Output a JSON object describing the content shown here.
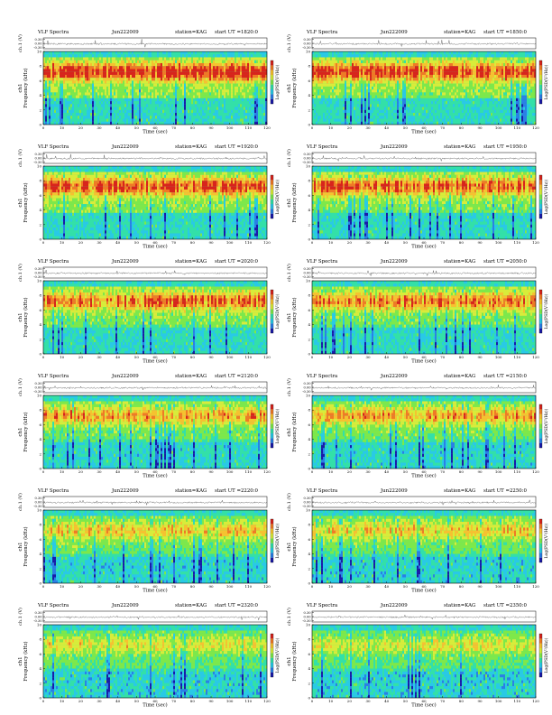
{
  "figure": {
    "title_prefix": "VLF Spectra",
    "date_text": "Jun222009",
    "station_text": "station=KAG",
    "start_prefix": "start  UT  =",
    "colors": {
      "background": "#ffffff",
      "spectrogram_scale": [
        "#1a1aa8",
        "#2a7fe6",
        "#29c9e6",
        "#33e0a8",
        "#7ee84a",
        "#d8ec3a",
        "#f6c230",
        "#ef7a26",
        "#d8241c"
      ],
      "trace": "#333333"
    }
  },
  "chart_data": [
    {
      "type": "heatmap",
      "subtype": "spectrogram",
      "title": "VLF Spectra    Jun222009    station=KAG  start  UT  =1820:0",
      "start_ut": "1820:0",
      "xlabel": "Time  (sec)",
      "ylabel": "Frequency  (kHz)",
      "channel_label": "ch1",
      "xlim": [
        0,
        120
      ],
      "ylim": [
        0,
        10
      ],
      "xticks": [
        0,
        10,
        20,
        30,
        40,
        50,
        60,
        70,
        80,
        90,
        100,
        110,
        120
      ],
      "yticks": [
        0,
        2,
        4,
        6,
        8,
        10
      ],
      "colorbar_label": "Log(PSD(V²/Hz))",
      "trace_label": "ch.1 (V)",
      "trace_ticks": [
        "0.30",
        "0.00",
        "-0.30"
      ],
      "activity": 0.95
    },
    {
      "type": "heatmap",
      "subtype": "spectrogram",
      "title": "VLF Spectra    Jun222009    station=KAG  start  UT  =1850:0",
      "start_ut": "1850:0",
      "xlabel": "Time  (sec)",
      "ylabel": "Frequency  (kHz)",
      "channel_label": "ch1",
      "xlim": [
        0,
        120
      ],
      "ylim": [
        0,
        10
      ],
      "xticks": [
        0,
        10,
        20,
        30,
        40,
        50,
        60,
        70,
        80,
        90,
        100,
        110,
        120
      ],
      "yticks": [
        0,
        2,
        4,
        6,
        8,
        10
      ],
      "colorbar_label": "Log(PSD(V²/Hz))",
      "trace_label": "ch.1 (V)",
      "trace_ticks": [
        "0.30",
        "0.00",
        "-0.30"
      ],
      "activity": 0.9
    },
    {
      "type": "heatmap",
      "subtype": "spectrogram",
      "title": "VLF Spectra    Jun222009    station=KAG  start  UT  =1920:0",
      "start_ut": "1920:0",
      "xlabel": "Time  (sec)",
      "ylabel": "Frequency  (kHz)",
      "channel_label": "ch1",
      "xlim": [
        0,
        120
      ],
      "ylim": [
        0,
        10
      ],
      "xticks": [
        0,
        10,
        20,
        30,
        40,
        50,
        60,
        70,
        80,
        90,
        100,
        110,
        120
      ],
      "yticks": [
        0,
        2,
        4,
        6,
        8,
        10
      ],
      "colorbar_label": "Log(PSD(V²/Hz))",
      "trace_label": "ch.1 (V)",
      "trace_ticks": [
        "0.30",
        "0.00",
        "-0.30"
      ],
      "activity": 0.85
    },
    {
      "type": "heatmap",
      "subtype": "spectrogram",
      "title": "VLF Spectra    Jun222009    station=KAG  start  UT  =1950:0",
      "start_ut": "1950:0",
      "xlabel": "Time  (sec)",
      "ylabel": "Frequency  (kHz)",
      "channel_label": "ch1",
      "xlim": [
        0,
        120
      ],
      "ylim": [
        0,
        10
      ],
      "xticks": [
        0,
        10,
        20,
        30,
        40,
        50,
        60,
        70,
        80,
        90,
        100,
        110,
        120
      ],
      "yticks": [
        0,
        2,
        4,
        6,
        8,
        10
      ],
      "colorbar_label": "Log(PSD(V²/Hz))",
      "trace_label": "ch.1 (V)",
      "trace_ticks": [
        "0.30",
        "0.00",
        "-0.30"
      ],
      "activity": 0.8
    },
    {
      "type": "heatmap",
      "subtype": "spectrogram",
      "title": "VLF Spectra    Jun222009    station=KAG  start  UT  =2020:0",
      "start_ut": "2020:0",
      "xlabel": "Time  (sec)",
      "ylabel": "Frequency  (kHz)",
      "channel_label": "ch1",
      "xlim": [
        0,
        120
      ],
      "ylim": [
        0,
        10
      ],
      "xticks": [
        0,
        10,
        20,
        30,
        40,
        50,
        60,
        70,
        80,
        90,
        100,
        110,
        120
      ],
      "yticks": [
        0,
        2,
        4,
        6,
        8,
        10
      ],
      "colorbar_label": "Log(PSD(V²/Hz))",
      "trace_label": "ch.1 (V)",
      "trace_ticks": [
        "0.30",
        "0.00",
        "-0.30"
      ],
      "activity": 0.75
    },
    {
      "type": "heatmap",
      "subtype": "spectrogram",
      "title": "VLF Spectra    Jun222009    station=KAG  start  UT  =2050:0",
      "start_ut": "2050:0",
      "xlabel": "Time  (sec)",
      "ylabel": "Frequency  (kHz)",
      "channel_label": "ch1",
      "xlim": [
        0,
        120
      ],
      "ylim": [
        0,
        10
      ],
      "xticks": [
        0,
        10,
        20,
        30,
        40,
        50,
        60,
        70,
        80,
        90,
        100,
        110,
        120
      ],
      "yticks": [
        0,
        2,
        4,
        6,
        8,
        10
      ],
      "colorbar_label": "Log(PSD(V²/Hz))",
      "trace_label": "ch.1 (V)",
      "trace_ticks": [
        "0.30",
        "0.00",
        "-0.30"
      ],
      "activity": 0.72
    },
    {
      "type": "heatmap",
      "subtype": "spectrogram",
      "title": "VLF Spectra    Jun222009    station=KAG  start  UT  =2120:0",
      "start_ut": "2120:0",
      "xlabel": "Time  (sec)",
      "ylabel": "Frequency  (kHz)",
      "channel_label": "ch1",
      "xlim": [
        0,
        120
      ],
      "ylim": [
        0,
        10
      ],
      "xticks": [
        0,
        10,
        20,
        30,
        40,
        50,
        60,
        70,
        80,
        90,
        100,
        110,
        120
      ],
      "yticks": [
        0,
        2,
        4,
        6,
        8,
        10
      ],
      "colorbar_label": "Log(PSD(V²/Hz))",
      "trace_label": "ch.1 (V)",
      "trace_ticks": [
        "0.30",
        "0.00",
        "-0.30"
      ],
      "activity": 0.62
    },
    {
      "type": "heatmap",
      "subtype": "spectrogram",
      "title": "VLF Spectra    Jun222009    station=KAG  start  UT  =2150:0",
      "start_ut": "2150:0",
      "xlabel": "Time  (sec)",
      "ylabel": "Frequency  (kHz)",
      "channel_label": "ch1",
      "xlim": [
        0,
        120
      ],
      "ylim": [
        0,
        10
      ],
      "xticks": [
        0,
        10,
        20,
        30,
        40,
        50,
        60,
        70,
        80,
        90,
        100,
        110,
        120
      ],
      "yticks": [
        0,
        2,
        4,
        6,
        8,
        10
      ],
      "colorbar_label": "Log(PSD(V²/Hz))",
      "trace_label": "ch.1 (V)",
      "trace_ticks": [
        "0.30",
        "0.00",
        "-0.30"
      ],
      "activity": 0.6
    },
    {
      "type": "heatmap",
      "subtype": "spectrogram",
      "title": "VLF Spectra    Jun222009    station=KAG  start  UT  =2220:0",
      "start_ut": "2220:0",
      "xlabel": "Time  (sec)",
      "ylabel": "Frequency  (kHz)",
      "channel_label": "ch1",
      "xlim": [
        0,
        120
      ],
      "ylim": [
        0,
        10
      ],
      "xticks": [
        0,
        10,
        20,
        30,
        40,
        50,
        60,
        70,
        80,
        90,
        100,
        110,
        120
      ],
      "yticks": [
        0,
        2,
        4,
        6,
        8,
        10
      ],
      "colorbar_label": "Log(PSD(V²/Hz))",
      "trace_label": "ch.1 (V)",
      "trace_ticks": [
        "0.30",
        "0.00",
        "-0.30"
      ],
      "activity": 0.5
    },
    {
      "type": "heatmap",
      "subtype": "spectrogram",
      "title": "VLF Spectra    Jun222009    station=KAG  start  UT  =2250:0",
      "start_ut": "2250:0",
      "xlabel": "Time  (sec)",
      "ylabel": "Frequency  (kHz)",
      "channel_label": "ch1",
      "xlim": [
        0,
        120
      ],
      "ylim": [
        0,
        10
      ],
      "xticks": [
        0,
        10,
        20,
        30,
        40,
        50,
        60,
        70,
        80,
        90,
        100,
        110,
        120
      ],
      "yticks": [
        0,
        2,
        4,
        6,
        8,
        10
      ],
      "colorbar_label": "Log(PSD(V²/Hz))",
      "trace_label": "ch.1 (V)",
      "trace_ticks": [
        "0.30",
        "0.00",
        "-0.30"
      ],
      "activity": 0.48
    },
    {
      "type": "heatmap",
      "subtype": "spectrogram",
      "title": "VLF Spectra    Jun222009    station=KAG  start  UT  =2320:0",
      "start_ut": "2320:0",
      "xlabel": "Time  (sec)",
      "ylabel": "Frequency  (kHz)",
      "channel_label": "ch1",
      "xlim": [
        0,
        120
      ],
      "ylim": [
        0,
        10
      ],
      "xticks": [
        0,
        10,
        20,
        30,
        40,
        50,
        60,
        70,
        80,
        90,
        100,
        110,
        120
      ],
      "yticks": [
        0,
        2,
        4,
        6,
        8,
        10
      ],
      "colorbar_label": "Log(PSD(V²/Hz))",
      "trace_label": "ch.1 (V)",
      "trace_ticks": [
        "0.30",
        "0.00",
        "-0.30"
      ],
      "activity": 0.38
    },
    {
      "type": "heatmap",
      "subtype": "spectrogram",
      "title": "VLF Spectra    Jun222009    station=KAG  start  UT  =2350:0",
      "start_ut": "2350:0",
      "xlabel": "Time  (sec)",
      "ylabel": "Frequency  (kHz)",
      "channel_label": "ch1",
      "xlim": [
        0,
        120
      ],
      "ylim": [
        0,
        10
      ],
      "xticks": [
        0,
        10,
        20,
        30,
        40,
        50,
        60,
        70,
        80,
        90,
        100,
        110,
        120
      ],
      "yticks": [
        0,
        2,
        4,
        6,
        8,
        10
      ],
      "colorbar_label": "Log(PSD(V²/Hz))",
      "trace_label": "ch.1 (V)",
      "trace_ticks": [
        "0.30",
        "0.00",
        "-0.30"
      ],
      "activity": 0.36
    }
  ]
}
